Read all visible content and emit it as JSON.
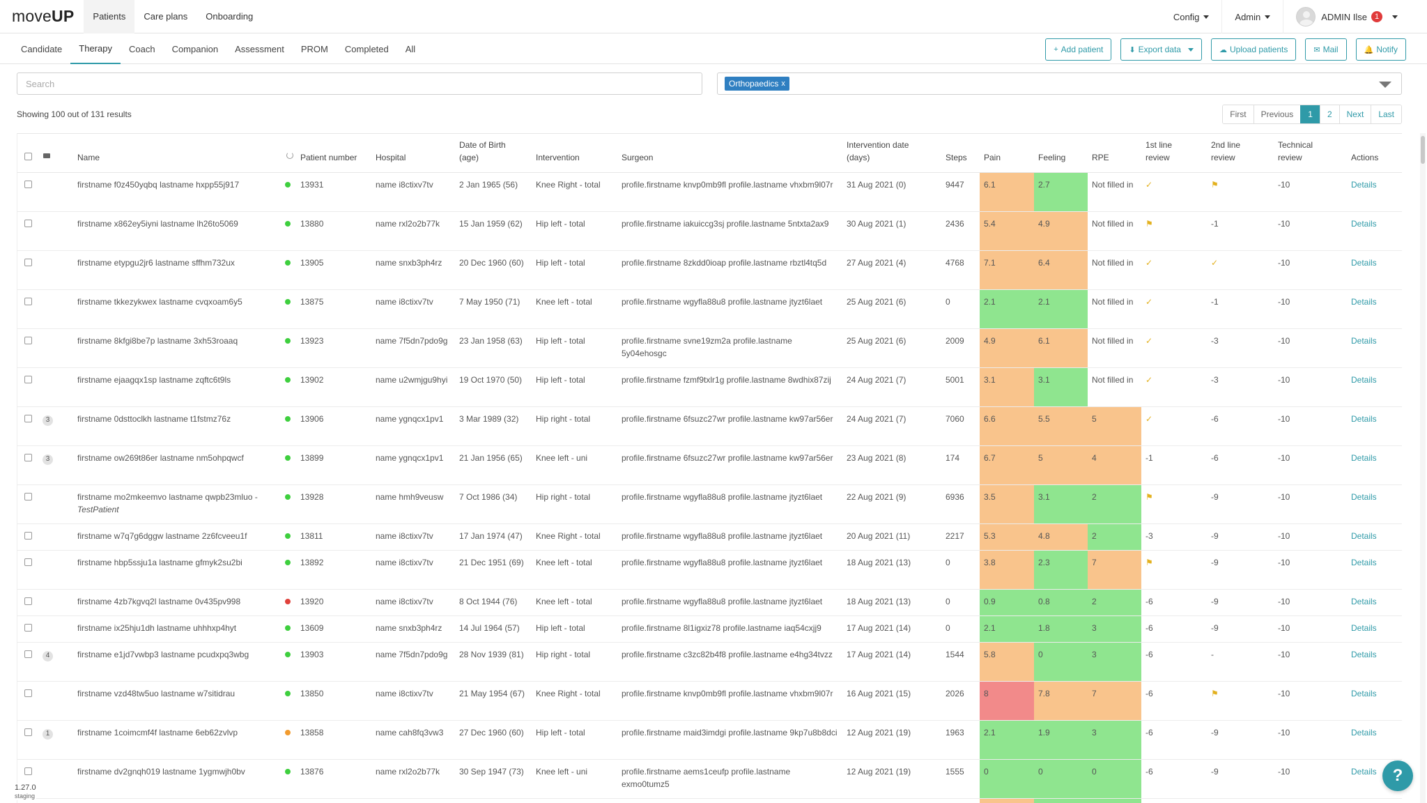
{
  "brand": {
    "prefix": "move",
    "suffix": "UP"
  },
  "nav": [
    "Patients",
    "Care plans",
    "Onboarding"
  ],
  "right_nav": {
    "config": "Config",
    "admin": "Admin",
    "user": "ADMIN Ilse",
    "notification_count": "1"
  },
  "subtabs": [
    "Candidate",
    "Therapy",
    "Coach",
    "Companion",
    "Assessment",
    "PROM",
    "Completed",
    "All"
  ],
  "top_actions": {
    "add_patient": "Add patient",
    "export_data": "Export data",
    "upload_patients": "Upload patients",
    "mail": "Mail",
    "notify": "Notify"
  },
  "search": {
    "placeholder": "Search",
    "value": ""
  },
  "filter": {
    "tag": "Orthopaedics",
    "tag_remove": "x"
  },
  "results_text": "Showing 100 out of 131 results",
  "pagination": {
    "first": "First",
    "previous": "Previous",
    "pages": [
      "1",
      "2"
    ],
    "next": "Next",
    "last": "Last"
  },
  "columns": {
    "name": "Name",
    "patient_number": "Patient number",
    "hospital": "Hospital",
    "dob_line1": "Date of Birth",
    "dob_line2": "(age)",
    "intervention": "Intervention",
    "surgeon": "Surgeon",
    "intervention_date_line1": "Intervention date",
    "intervention_date_line2": "(days)",
    "steps": "Steps",
    "pain": "Pain",
    "feeling": "Feeling",
    "rpe": "RPE",
    "first_review_line1": "1st line",
    "first_review_line2": "review",
    "second_review_line1": "2nd line",
    "second_review_line2": "review",
    "technical_line1": "Technical",
    "technical_line2": "review",
    "actions": "Actions"
  },
  "colors": {
    "accent": "#2f9aa8",
    "orange": "#f9c48c",
    "green": "#8fe58f",
    "red": "#f28a8a",
    "status_green": "#3ecf3e",
    "status_red": "#e0413b",
    "status_orange": "#f29b2e"
  },
  "rows": [
    {
      "count": "",
      "name": "firstname f0z450yqbq lastname hxpp55j917",
      "status": "green",
      "number": "13931",
      "hospital": "name i8ctixv7tv",
      "dob": "2 Jan 1965 (56)",
      "intervention": "Knee Right - total",
      "surgeon": "profile.firstname knvp0mb9fl profile.lastname vhxbm9l07r",
      "date": "31 Aug 2021 (0)",
      "steps": "9447",
      "pain": "6.1",
      "pain_c": "orange",
      "feeling": "2.7",
      "feeling_c": "green",
      "rpe": "Not filled in",
      "rpe_c": "",
      "r1": "check",
      "r2": "flag",
      "tech": "-10",
      "details": "Details"
    },
    {
      "count": "",
      "name": "firstname x862ey5iyni lastname lh26to5069",
      "status": "green",
      "number": "13880",
      "hospital": "name rxl2o2b77k",
      "dob": "15 Jan 1959 (62)",
      "intervention": "Hip left - total",
      "surgeon": "profile.firstname iakuiccg3sj profile.lastname 5ntxta2ax9",
      "date": "30 Aug 2021 (1)",
      "steps": "2436",
      "pain": "5.4",
      "pain_c": "orange",
      "feeling": "4.9",
      "feeling_c": "orange",
      "rpe": "Not filled in",
      "rpe_c": "",
      "r1": "flag",
      "r2": "-1",
      "tech": "-10",
      "details": "Details"
    },
    {
      "count": "",
      "name": "firstname etypgu2jr6 lastname sffhm732ux",
      "status": "green",
      "number": "13905",
      "hospital": "name snxb3ph4rz",
      "dob": "20 Dec 1960 (60)",
      "intervention": "Hip left - total",
      "surgeon": "profile.firstname 8zkdd0ioap profile.lastname rbztl4tq5d",
      "date": "27 Aug 2021 (4)",
      "steps": "4768",
      "pain": "7.1",
      "pain_c": "orange",
      "feeling": "6.4",
      "feeling_c": "orange",
      "rpe": "Not filled in",
      "rpe_c": "",
      "r1": "check",
      "r2": "check",
      "tech": "-10",
      "details": "Details"
    },
    {
      "count": "",
      "name": "firstname tkkezykwex lastname cvqxoam6y5",
      "status": "green",
      "number": "13875",
      "hospital": "name i8ctixv7tv",
      "dob": "7 May 1950 (71)",
      "intervention": "Knee left - total",
      "surgeon": "profile.firstname wgyfla88u8 profile.lastname jtyzt6laet",
      "date": "25 Aug 2021 (6)",
      "steps": "0",
      "pain": "2.1",
      "pain_c": "green",
      "feeling": "2.1",
      "feeling_c": "green",
      "rpe": "Not filled in",
      "rpe_c": "",
      "r1": "check",
      "r2": "-1",
      "tech": "-10",
      "details": "Details"
    },
    {
      "count": "",
      "name": "firstname 8kfgi8be7p lastname 3xh53roaaq",
      "status": "green",
      "number": "13923",
      "hospital": "name 7f5dn7pdo9g",
      "dob": "23 Jan 1958 (63)",
      "intervention": "Hip left - total",
      "surgeon": "profile.firstname svne19zm2a profile.lastname 5y04ehosgc",
      "date": "25 Aug 2021 (6)",
      "steps": "2009",
      "pain": "4.9",
      "pain_c": "orange",
      "feeling": "6.1",
      "feeling_c": "orange",
      "rpe": "Not filled in",
      "rpe_c": "",
      "r1": "check",
      "r2": "-3",
      "tech": "-10",
      "details": "Details"
    },
    {
      "count": "",
      "name": "firstname ejaagqx1sp lastname zqftc6t9ls",
      "status": "green",
      "number": "13902",
      "hospital": "name u2wmjgu9hyi",
      "dob": "19 Oct 1970 (50)",
      "intervention": "Hip left - total",
      "surgeon": "profile.firstname fzmf9txlr1g profile.lastname 8wdhix87zij",
      "date": "24 Aug 2021 (7)",
      "steps": "5001",
      "pain": "3.1",
      "pain_c": "orange",
      "feeling": "3.1",
      "feeling_c": "green",
      "rpe": "Not filled in",
      "rpe_c": "",
      "r1": "check",
      "r2": "-3",
      "tech": "-10",
      "details": "Details"
    },
    {
      "count": "3",
      "name": "firstname 0dsttoclkh lastname t1fstmz76z",
      "status": "green",
      "number": "13906",
      "hospital": "name ygnqcx1pv1",
      "dob": "3 Mar 1989 (32)",
      "intervention": "Hip right - total",
      "surgeon": "profile.firstname 6fsuzc27wr profile.lastname kw97ar56er",
      "date": "24 Aug 2021 (7)",
      "steps": "7060",
      "pain": "6.6",
      "pain_c": "orange",
      "feeling": "5.5",
      "feeling_c": "orange",
      "rpe": "5",
      "rpe_c": "orange",
      "r1": "check",
      "r2": "-6",
      "tech": "-10",
      "details": "Details"
    },
    {
      "count": "3",
      "name": "firstname ow269t86er lastname nm5ohpqwcf",
      "status": "green",
      "number": "13899",
      "hospital": "name ygnqcx1pv1",
      "dob": "21 Jan 1956 (65)",
      "intervention": "Knee left - uni",
      "surgeon": "profile.firstname 6fsuzc27wr profile.lastname kw97ar56er",
      "date": "23 Aug 2021 (8)",
      "steps": "174",
      "pain": "6.7",
      "pain_c": "orange",
      "feeling": "5",
      "feeling_c": "orange",
      "rpe": "4",
      "rpe_c": "orange",
      "r1": "-1",
      "r2": "-6",
      "tech": "-10",
      "details": "Details"
    },
    {
      "count": "",
      "name": "firstname mo2mkeemvo lastname qwpb23mluo -",
      "name_extra": "TestPatient",
      "status": "green",
      "number": "13928",
      "hospital": "name hmh9veusw",
      "dob": "7 Oct 1986 (34)",
      "intervention": "Hip right - total",
      "surgeon": "profile.firstname wgyfla88u8 profile.lastname jtyzt6laet",
      "date": "22 Aug 2021 (9)",
      "steps": "6936",
      "pain": "3.5",
      "pain_c": "orange",
      "feeling": "3.1",
      "feeling_c": "green",
      "rpe": "2",
      "rpe_c": "green",
      "r1": "flag",
      "r2": "-9",
      "tech": "-10",
      "details": "Details"
    },
    {
      "count": "",
      "name": "firstname w7q7g6dggw lastname 2z6fcveeu1f",
      "status": "green",
      "number": "13811",
      "hospital": "name i8ctixv7tv",
      "dob": "17 Jan 1974 (47)",
      "intervention": "Knee Right - total",
      "surgeon": "profile.firstname wgyfla88u8 profile.lastname jtyzt6laet",
      "date": "20 Aug 2021 (11)",
      "steps": "2217",
      "pain": "5.3",
      "pain_c": "orange",
      "feeling": "4.8",
      "feeling_c": "orange",
      "rpe": "2",
      "rpe_c": "green",
      "r1": "-3",
      "r2": "-9",
      "tech": "-10",
      "details": "Details",
      "short": true
    },
    {
      "count": "",
      "name": "firstname hbp5ssju1a lastname gfmyk2su2bi",
      "status": "green",
      "number": "13892",
      "hospital": "name i8ctixv7tv",
      "dob": "21 Dec 1951 (69)",
      "intervention": "Knee left - total",
      "surgeon": "profile.firstname wgyfla88u8 profile.lastname jtyzt6laet",
      "date": "18 Aug 2021 (13)",
      "steps": "0",
      "pain": "3.8",
      "pain_c": "orange",
      "feeling": "2.3",
      "feeling_c": "green",
      "rpe": "7",
      "rpe_c": "orange",
      "r1": "flag",
      "r2": "-9",
      "tech": "-10",
      "details": "Details"
    },
    {
      "count": "",
      "name": "firstname 4zb7kgvq2l lastname 0v435pv998",
      "status": "red",
      "number": "13920",
      "hospital": "name i8ctixv7tv",
      "dob": "8 Oct 1944 (76)",
      "intervention": "Knee left - total",
      "surgeon": "profile.firstname wgyfla88u8 profile.lastname jtyzt6laet",
      "date": "18 Aug 2021 (13)",
      "steps": "0",
      "pain": "0.9",
      "pain_c": "green",
      "feeling": "0.8",
      "feeling_c": "green",
      "rpe": "2",
      "rpe_c": "green",
      "r1": "-6",
      "r2": "-9",
      "tech": "-10",
      "details": "Details",
      "short": true
    },
    {
      "count": "",
      "name": "firstname ix25hju1dh lastname uhhhxp4hyt",
      "status": "green",
      "number": "13609",
      "hospital": "name snxb3ph4rz",
      "dob": "14 Jul 1964 (57)",
      "intervention": "Hip left - total",
      "surgeon": "profile.firstname 8l1igxiz78 profile.lastname iaq54cxjj9",
      "date": "17 Aug 2021 (14)",
      "steps": "0",
      "pain": "2.1",
      "pain_c": "green",
      "feeling": "1.8",
      "feeling_c": "green",
      "rpe": "3",
      "rpe_c": "green",
      "r1": "-6",
      "r2": "-9",
      "tech": "-10",
      "details": "Details",
      "short": true
    },
    {
      "count": "4",
      "name": "firstname e1jd7vwbp3 lastname pcudxpq3wbg",
      "status": "green",
      "number": "13903",
      "hospital": "name 7f5dn7pdo9g",
      "dob": "28 Nov 1939 (81)",
      "intervention": "Hip right - total",
      "surgeon": "profile.firstname c3zc82b4f8 profile.lastname e4hg34tvzz",
      "date": "17 Aug 2021 (14)",
      "steps": "1544",
      "pain": "5.8",
      "pain_c": "orange",
      "feeling": "0",
      "feeling_c": "green",
      "rpe": "3",
      "rpe_c": "green",
      "r1": "-6",
      "r2": "-",
      "tech": "-10",
      "details": "Details"
    },
    {
      "count": "",
      "name": "firstname vzd48tw5uo lastname w7sitidrau",
      "status": "green",
      "number": "13850",
      "hospital": "name i8ctixv7tv",
      "dob": "21 May 1954 (67)",
      "intervention": "Knee Right - total",
      "surgeon": "profile.firstname knvp0mb9fl profile.lastname vhxbm9l07r",
      "date": "16 Aug 2021 (15)",
      "steps": "2026",
      "pain": "8",
      "pain_c": "red",
      "feeling": "7.8",
      "feeling_c": "orange",
      "rpe": "7",
      "rpe_c": "orange",
      "r1": "-6",
      "r2": "flag",
      "tech": "-10",
      "details": "Details"
    },
    {
      "count": "1",
      "name": "firstname 1coimcmf4f lastname 6eb62zvlvp",
      "status": "orange",
      "number": "13858",
      "hospital": "name cah8fq3vw3",
      "dob": "27 Dec 1960 (60)",
      "intervention": "Hip left - total",
      "surgeon": "profile.firstname maid3imdgi profile.lastname 9kp7u8b8dci",
      "date": "12 Aug 2021 (19)",
      "steps": "1963",
      "pain": "2.1",
      "pain_c": "green",
      "feeling": "1.9",
      "feeling_c": "green",
      "rpe": "3",
      "rpe_c": "green",
      "r1": "-6",
      "r2": "-9",
      "tech": "-10",
      "details": "Details"
    },
    {
      "count": "",
      "name": "firstname dv2gnqh019 lastname 1ygmwjh0bv",
      "status": "green",
      "number": "13876",
      "hospital": "name rxl2o2b77k",
      "dob": "30 Sep 1947 (73)",
      "intervention": "Knee left - uni",
      "surgeon": "profile.firstname aems1ceufp profile.lastname exmo0tumz5",
      "date": "12 Aug 2021 (19)",
      "steps": "1555",
      "pain": "0",
      "pain_c": "green",
      "feeling": "0",
      "feeling_c": "green",
      "rpe": "0",
      "rpe_c": "green",
      "r1": "-6",
      "r2": "-9",
      "tech": "-10",
      "details": "Details"
    },
    {
      "count": "",
      "name": "",
      "status": "",
      "number": "",
      "hospital": "",
      "dob": "",
      "intervention": "",
      "surgeon": "",
      "date": "",
      "steps": "",
      "pain": "",
      "pain_c": "orange",
      "feeling": "",
      "feeling_c": "green",
      "rpe": "",
      "rpe_c": "green",
      "r1": "",
      "r2": "",
      "tech": "",
      "details": ""
    }
  ],
  "footer": {
    "version": "1.27.0",
    "env": "staging",
    "help": "?"
  }
}
